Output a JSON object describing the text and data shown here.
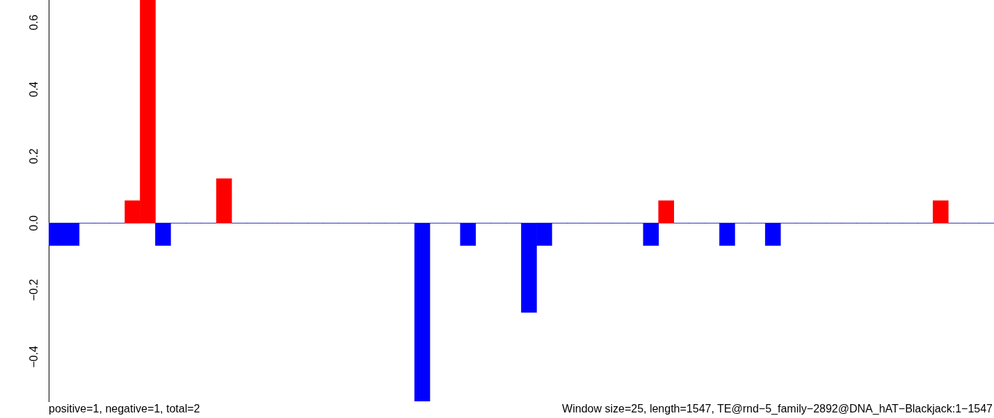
{
  "chart_data": {
    "type": "bar",
    "categories": [
      null,
      null,
      null,
      null,
      null,
      null,
      null,
      null,
      null,
      null,
      null,
      null,
      null,
      null,
      null,
      null,
      null,
      null,
      null,
      null,
      null,
      null,
      null,
      null,
      null,
      null,
      null,
      null,
      null,
      null,
      null,
      null,
      null,
      null,
      null,
      null,
      null,
      null,
      null,
      null,
      null,
      null,
      null,
      null,
      null,
      null,
      null,
      null,
      null,
      null,
      null,
      null,
      null,
      null,
      null,
      null,
      null,
      null,
      null,
      null,
      null,
      null
    ],
    "values": [
      -0.067,
      -0.067,
      0,
      0,
      0,
      0.067,
      0.667,
      -0.067,
      0,
      0,
      0,
      0.133,
      0,
      0,
      0,
      0,
      0,
      0,
      0,
      0,
      0,
      0,
      0,
      0,
      -0.533,
      0,
      0,
      -0.067,
      0,
      0,
      0,
      -0.267,
      -0.067,
      0,
      0,
      0,
      0,
      0,
      0,
      -0.067,
      0.067,
      0,
      0,
      0,
      -0.067,
      0,
      0,
      -0.067,
      0,
      0,
      0,
      0,
      0,
      0,
      0,
      0,
      0,
      0,
      0.067,
      0,
      0,
      0
    ],
    "colors": [
      "#0000ff",
      "#0000ff",
      "#0000ff",
      "#0000ff",
      "#0000ff",
      "#ff0000",
      "#ff0000",
      "#0000ff",
      "#0000ff",
      "#0000ff",
      "#0000ff",
      "#ff0000",
      "#0000ff",
      "#0000ff",
      "#0000ff",
      "#0000ff",
      "#0000ff",
      "#0000ff",
      "#0000ff",
      "#0000ff",
      "#0000ff",
      "#0000ff",
      "#0000ff",
      "#0000ff",
      "#0000ff",
      "#0000ff",
      "#0000ff",
      "#0000ff",
      "#0000ff",
      "#0000ff",
      "#0000ff",
      "#0000ff",
      "#0000ff",
      "#0000ff",
      "#0000ff",
      "#0000ff",
      "#0000ff",
      "#0000ff",
      "#0000ff",
      "#0000ff",
      "#ff0000",
      "#0000ff",
      "#0000ff",
      "#0000ff",
      "#0000ff",
      "#0000ff",
      "#0000ff",
      "#0000ff",
      "#0000ff",
      "#0000ff",
      "#0000ff",
      "#0000ff",
      "#0000ff",
      "#0000ff",
      "#0000ff",
      "#0000ff",
      "#0000ff",
      "#0000ff",
      "#ff0000",
      "#0000ff",
      "#0000ff",
      "#0000ff"
    ],
    "ylim": [
      -0.533,
      0.667
    ],
    "yticks": [
      {
        "value": -0.4,
        "label": "−0.4"
      },
      {
        "value": -0.2,
        "label": "−0.2"
      },
      {
        "value": 0,
        "label": "0.0"
      },
      {
        "value": 0.2,
        "label": "0.2"
      },
      {
        "value": 0.4,
        "label": "0.4"
      },
      {
        "value": 0.6,
        "label": "0.6"
      }
    ],
    "ref_lines": [
      {
        "axis": "y",
        "value": 0,
        "color": "#a0a0a0"
      }
    ],
    "annotations": [
      "positive=1, negative=1, total=2",
      "Window size=25, length=1547, TE@rnd−5_family−2892@DNA_hAT−Blackjack:1−1547"
    ],
    "tick_labels": "y",
    "grid": false,
    "legend": false
  }
}
